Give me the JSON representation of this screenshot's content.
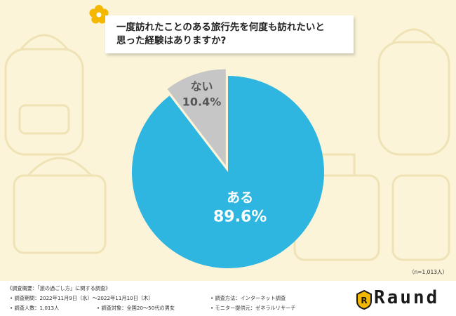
{
  "title": "一度訪れたことのある旅行先を何度も訪れたいと\n思った経験はありますか?",
  "note": "（n=1,013人）",
  "footer": {
    "heading": "《調査概要：「旅の過ごし方」に関する調査》",
    "period": "• 調査期間：2022年11月9日（水）〜2022年11月10日（木）",
    "method": "• 調査方法：インターネット調査",
    "count": "• 調査人数：1,013人",
    "target": "• 調査対象：全国20〜50代の男女",
    "provider": "• モニター提供元：ゼネラルリサーチ"
  },
  "logo": {
    "text": "Raund",
    "badge": "R"
  },
  "chart_data": {
    "type": "pie",
    "categories": [
      "ある",
      "ない"
    ],
    "values": [
      89.6,
      10.4
    ],
    "value_labels": [
      "89.6%",
      "10.4%"
    ],
    "colors": [
      "#2fb6e0",
      "#c6c6c6"
    ],
    "label_colors": [
      "#ffffff",
      "#555555"
    ]
  },
  "colors": {
    "background": "#fbf4d8",
    "accent": "#f5b800"
  }
}
